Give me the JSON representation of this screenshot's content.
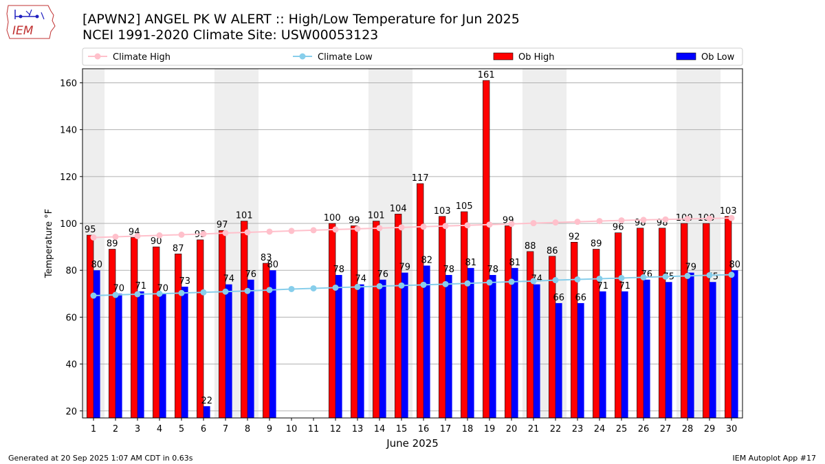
{
  "page": {
    "title_line1": "[APWN2] ANGEL PK W ALERT :: High/Low Temperature for Jun 2025",
    "title_line2": "NCEI 1991-2020 Climate Site: USW00053123",
    "footer_left": "Generated at 20 Sep 2025 1:07 AM CDT in 0.63s",
    "footer_right": "IEM Autoplot App #17",
    "logo_text": "IEM"
  },
  "chart_data": {
    "type": "bar",
    "xlabel": "June 2025",
    "ylabel": "Temperature °F",
    "ylim": [
      17,
      166
    ],
    "yticks": [
      20,
      40,
      60,
      80,
      100,
      120,
      140,
      160
    ],
    "grid": true,
    "legend_position": "top",
    "categories": [
      1,
      2,
      3,
      4,
      5,
      6,
      7,
      8,
      9,
      10,
      11,
      12,
      13,
      14,
      15,
      16,
      17,
      18,
      19,
      20,
      21,
      22,
      23,
      24,
      25,
      26,
      27,
      28,
      29,
      30
    ],
    "weekend_shading": [
      [
        1,
        1
      ],
      [
        7,
        8
      ],
      [
        14,
        15
      ],
      [
        21,
        22
      ],
      [
        28,
        29
      ]
    ],
    "series": [
      {
        "name": "Climate High",
        "kind": "line",
        "color": "#ffc0cb",
        "values": [
          94.0,
          94.3,
          94.6,
          94.9,
          95.2,
          95.5,
          95.9,
          96.2,
          96.5,
          96.8,
          97.1,
          97.4,
          97.7,
          98.0,
          98.3,
          98.6,
          98.9,
          99.2,
          99.5,
          99.8,
          100.1,
          100.4,
          100.7,
          101.0,
          101.3,
          101.5,
          101.7,
          101.9,
          102.1,
          102.3
        ]
      },
      {
        "name": "Climate Low",
        "kind": "line",
        "color": "#87ceeb",
        "values": [
          69.2,
          69.5,
          69.8,
          70.0,
          70.3,
          70.6,
          70.9,
          71.2,
          71.6,
          72.0,
          72.3,
          72.6,
          72.9,
          73.2,
          73.5,
          73.8,
          74.1,
          74.4,
          74.8,
          75.1,
          75.4,
          75.8,
          76.1,
          76.4,
          76.7,
          77.0,
          77.3,
          77.6,
          77.9,
          78.1
        ]
      },
      {
        "name": "Ob High",
        "kind": "bar",
        "color": "#ff0000",
        "values": [
          95,
          89,
          94,
          90,
          87,
          93,
          97,
          101,
          83,
          null,
          null,
          100,
          99,
          101,
          104,
          117,
          103,
          105,
          161,
          99,
          88,
          86,
          92,
          89,
          96,
          98,
          98,
          100,
          100,
          103
        ]
      },
      {
        "name": "Ob Low",
        "kind": "bar",
        "color": "#0000ff",
        "values": [
          80,
          70,
          71,
          70,
          73,
          22,
          74,
          76,
          80,
          null,
          null,
          78,
          74,
          76,
          79,
          82,
          78,
          81,
          78,
          81,
          74,
          66,
          66,
          71,
          71,
          76,
          75,
          79,
          75,
          80
        ]
      }
    ]
  }
}
